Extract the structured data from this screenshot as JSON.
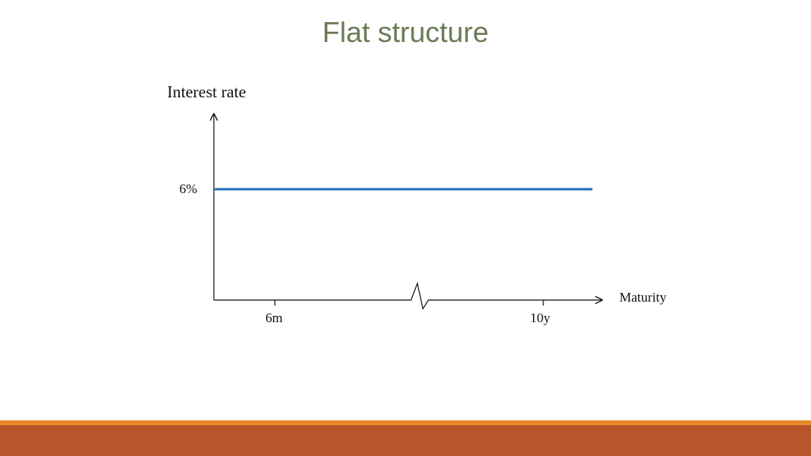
{
  "slide": {
    "title": "Flat structure",
    "title_color": "#6b7a55",
    "footer_colors": [
      "#e88a2a",
      "#b9552b"
    ]
  },
  "chart_data": {
    "type": "line",
    "title": "Flat structure",
    "ylabel": "Interest rate",
    "xlabel": "Maturity",
    "x_ticks": [
      "6m",
      "10y"
    ],
    "y_ticks": [
      "6%"
    ],
    "series": [
      {
        "x": [
          "6m",
          "10y"
        ],
        "values": [
          6,
          6
        ],
        "color": "#1f6fb5"
      }
    ],
    "axis_break": true,
    "grid": false
  }
}
